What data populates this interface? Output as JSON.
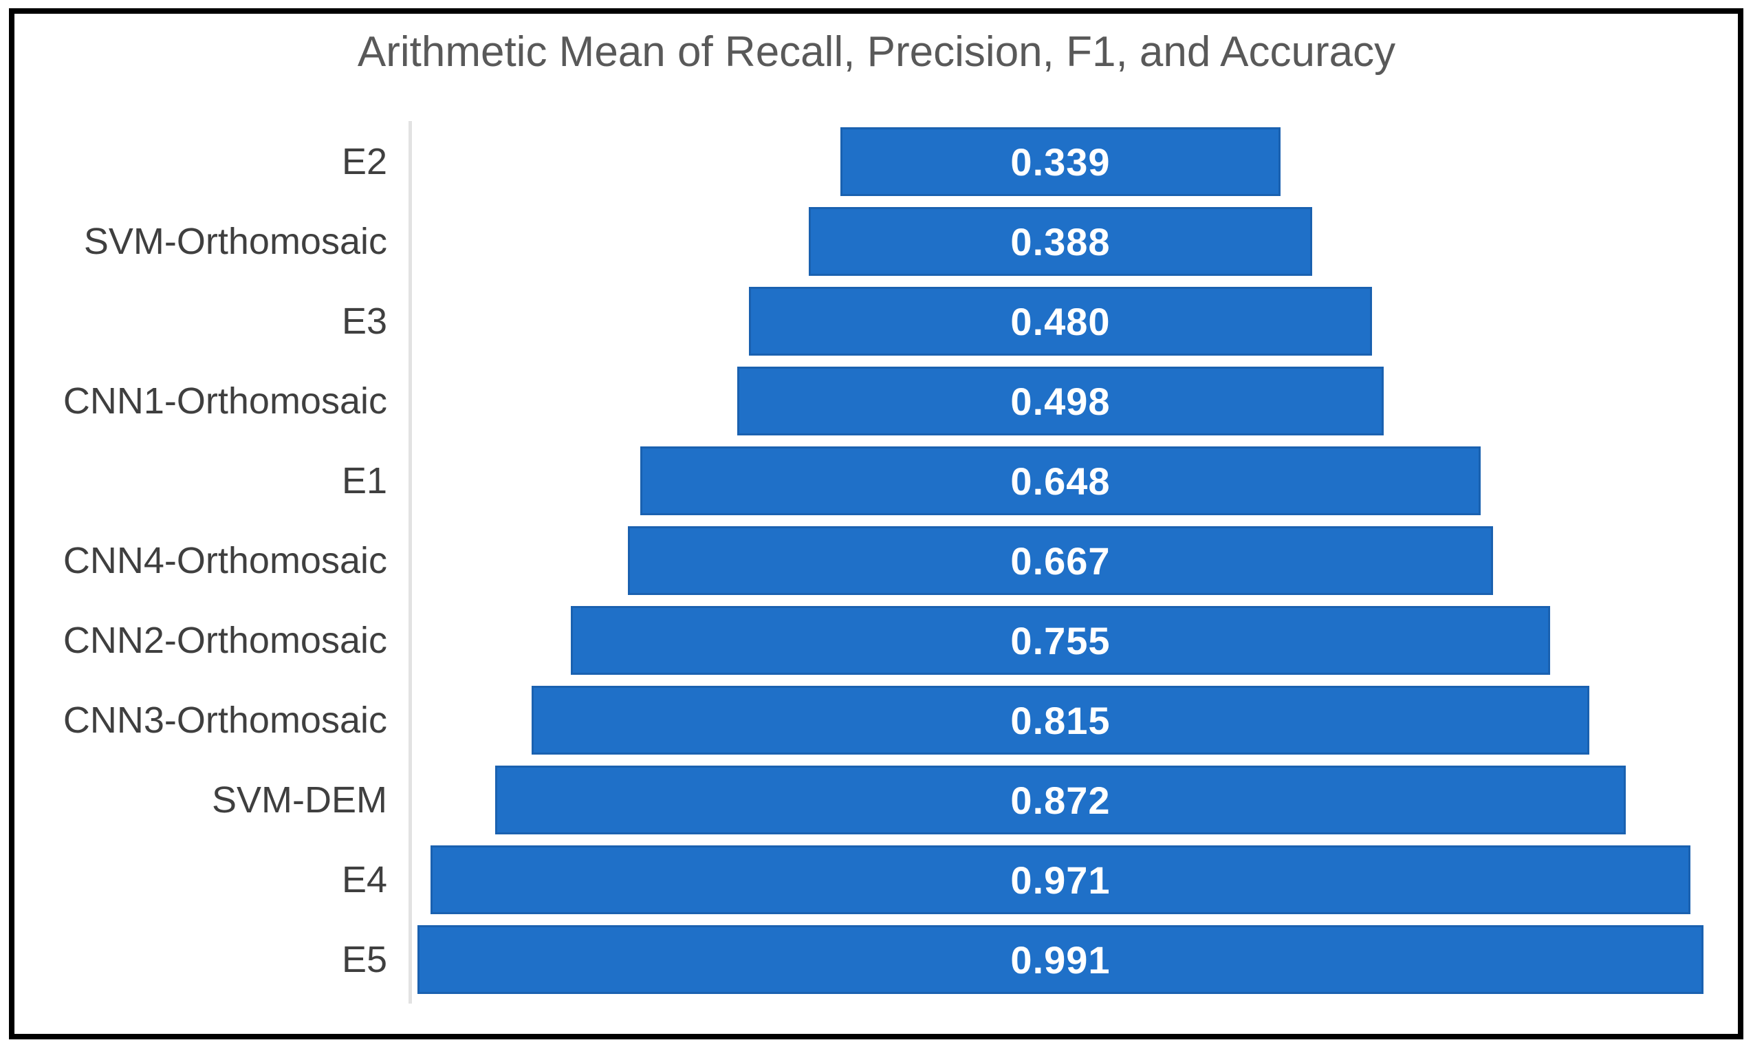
{
  "figure": {
    "kind": "horizontal-centered-bar-figure",
    "border": "black rectangular frame"
  },
  "colors": {
    "bar": "#1f70c8",
    "bar_border": "#1a61b0",
    "value_text": "#ffffff",
    "title_text": "#595959",
    "category_text": "#3f3f3f",
    "axis_line": "#e2e2e2",
    "frame": "#000000",
    "background": "#ffffff"
  },
  "chart_data": {
    "type": "bar",
    "orientation": "horizontal",
    "subtype": "centered-funnel-style-bars",
    "title": "Arithmetic Mean of Recall, Precision, F1, and Accuracy",
    "xlabel": "",
    "ylabel": "",
    "categories": [
      "E2",
      "SVM-Orthomosaic",
      "E3",
      "CNN1-Orthomosaic",
      "E1",
      "CNN4-Orthomosaic",
      "CNN2-Orthomosaic",
      "CNN3-Orthomosaic",
      "SVM-DEM",
      "E4",
      "E5"
    ],
    "values": [
      0.339,
      0.388,
      0.48,
      0.498,
      0.648,
      0.667,
      0.755,
      0.815,
      0.872,
      0.971,
      0.991
    ],
    "value_labels": [
      "0.339",
      "0.388",
      "0.480",
      "0.498",
      "0.648",
      "0.667",
      "0.755",
      "0.815",
      "0.872",
      "0.971",
      "0.991"
    ],
    "xlim": [
      0,
      1.0
    ],
    "grid": false,
    "legend": null,
    "data_labels_position": "inside-center",
    "bars_alignment": "centered"
  }
}
